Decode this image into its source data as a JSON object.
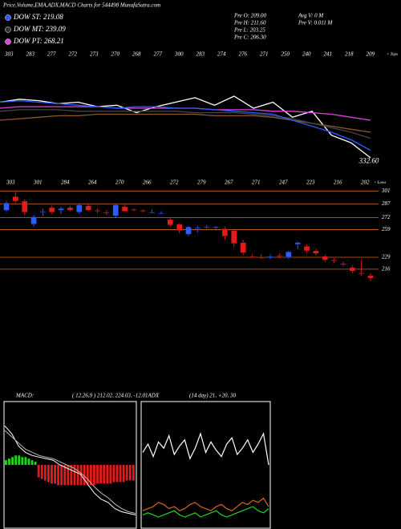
{
  "header": "Price,Volume,EMA,ADX,MACD Charts for 544498  MunafaSutra.com",
  "legend": [
    {
      "name": "DOW ST: 219.08",
      "color": "#2a5cff"
    },
    {
      "name": "DOW MT: 239.09",
      "color": "#333333"
    },
    {
      "name": "DOW PT: 268.21",
      "color": "#e040e0"
    }
  ],
  "info": [
    "Pre  O: 209.00",
    "Pre  H: 211.60",
    "Pre  L: 203.25",
    "Pre  C: 206.30",
    "Avg V: 0  M",
    "Pre  V: 0.011 M"
  ],
  "chart_data": [
    {
      "type": "line",
      "tops_label": "< Tops",
      "tops": [
        "303",
        "283",
        "277",
        "272",
        "273",
        "270",
        "268",
        "277",
        "300",
        "283",
        "274",
        "276",
        "271",
        "250",
        "240",
        "241",
        "218",
        "209"
      ],
      "marker": {
        "value": 332.6,
        "label": "332.60"
      },
      "ylim": [
        320,
        400
      ],
      "series": [
        {
          "color": "#ffffff",
          "values": [
            372,
            374,
            373,
            371,
            372,
            369,
            370,
            365,
            369,
            372,
            375,
            370,
            376,
            368,
            372,
            362,
            366,
            350,
            345,
            335
          ]
        },
        {
          "color": "#8b5a2b",
          "values": [
            360,
            361,
            362,
            363,
            363,
            364,
            364,
            364,
            364,
            364,
            364,
            363,
            363,
            363,
            362,
            360,
            358,
            356,
            354,
            352
          ]
        },
        {
          "color": "#444444",
          "values": [
            366,
            367,
            367,
            367,
            366,
            366,
            366,
            366,
            366,
            366,
            365,
            365,
            365,
            364,
            363,
            361,
            358,
            355,
            352,
            348
          ]
        },
        {
          "color": "#e040e0",
          "values": [
            368,
            369,
            369,
            369,
            369,
            369,
            368,
            368,
            368,
            368,
            368,
            367,
            367,
            367,
            366,
            366,
            365,
            364,
            362,
            360
          ]
        },
        {
          "color": "#2a5cff",
          "values": [
            372,
            373,
            372,
            371,
            370,
            369,
            368,
            369,
            369,
            368,
            368,
            367,
            366,
            365,
            364,
            360,
            356,
            352,
            347,
            340
          ]
        }
      ]
    },
    {
      "type": "candlestick",
      "lows_label": "< Lows",
      "lows": [
        "303",
        "301",
        "284",
        "264",
        "270",
        "266",
        "272",
        "279",
        "267",
        "271",
        "247",
        "223",
        "216",
        "202"
      ],
      "ylim": [
        195,
        310
      ],
      "yticks": [
        301,
        287,
        272,
        259,
        229,
        216
      ],
      "up_color": "#2a5cff",
      "down_color": "#e31b1b",
      "grid_color": "#d2691e",
      "open": [
        280,
        295,
        290,
        265,
        278,
        283,
        280,
        283,
        278,
        285,
        280,
        278,
        274,
        284,
        281,
        280,
        278,
        277,
        270,
        265,
        254,
        260,
        262,
        261,
        260,
        258,
        245,
        230,
        229,
        229,
        231,
        229,
        243,
        241,
        236,
        230,
        226,
        222,
        218,
        212,
        209
      ],
      "high": [
        290,
        300,
        292,
        275,
        282,
        285,
        284,
        285,
        288,
        287,
        282,
        280,
        287,
        286,
        282,
        281,
        281,
        279,
        273,
        266,
        263,
        263,
        264,
        263,
        262,
        260,
        248,
        232,
        232,
        232,
        233,
        236,
        246,
        243,
        238,
        232,
        228,
        224,
        220,
        226,
        211.6
      ],
      "low": [
        278,
        288,
        275,
        262,
        274,
        276,
        276,
        279,
        276,
        279,
        277,
        275,
        272,
        278,
        279,
        278,
        277,
        276,
        262,
        255,
        252,
        256,
        260,
        258,
        248,
        240,
        232,
        228,
        227,
        227,
        228,
        227,
        238,
        234,
        231,
        224,
        223,
        219,
        212,
        209,
        203.25
      ],
      "close": [
        288,
        290,
        278,
        273,
        279,
        278,
        282,
        280,
        286,
        280,
        279,
        277,
        286,
        279,
        280,
        279,
        278,
        277,
        264,
        258,
        262,
        261,
        262,
        262,
        252,
        244,
        234,
        229,
        228,
        230,
        230,
        235,
        245,
        236,
        233,
        226,
        225,
        221,
        214,
        211,
        206.3
      ]
    },
    {
      "type": "macd",
      "label": "MACD:",
      "title": "( 12,26,9 ) 212.02, 224.03, -12.01ADX",
      "ylim": [
        -40,
        40
      ],
      "histogram": [
        3,
        4,
        5,
        6,
        6,
        5,
        5,
        4,
        3,
        2,
        -8,
        -9,
        -10,
        -11,
        -12,
        -12,
        -13,
        -13,
        -13,
        -13,
        -13,
        -13,
        -13,
        -13,
        -13,
        -13,
        -13,
        -13,
        -12,
        -12,
        -12,
        -12,
        -12,
        -11,
        -11,
        -11,
        -11,
        -10,
        -10,
        -10
      ],
      "series": [
        {
          "color": "#ffffff",
          "values": [
            25,
            20,
            12,
            8,
            6,
            5,
            4,
            3,
            0,
            -2,
            -4,
            -6,
            -12,
            -18,
            -22,
            -24,
            -28,
            -30,
            -31,
            -32
          ]
        },
        {
          "color": "#bbbbbb",
          "values": [
            22,
            18,
            14,
            10,
            8,
            6,
            5,
            4,
            2,
            0,
            -2,
            -5,
            -9,
            -14,
            -18,
            -21,
            -25,
            -28,
            -30,
            -31
          ]
        }
      ],
      "histogram_up": "#1fd61f",
      "histogram_down": "#e31b1b"
    },
    {
      "type": "adx",
      "title": "(14 day) 21, +20, 30",
      "ylim": [
        0,
        60
      ],
      "series": [
        {
          "color": "#ffffff",
          "values": [
            36,
            40,
            34,
            41,
            38,
            44,
            35,
            39,
            42,
            33,
            38,
            45,
            36,
            41,
            37,
            34,
            40,
            43,
            35,
            38,
            42,
            36,
            40,
            45,
            30
          ]
        },
        {
          "color": "#d2691e",
          "values": [
            8,
            9,
            10,
            12,
            11,
            9,
            10,
            8,
            9,
            11,
            12,
            10,
            9,
            8,
            10,
            11,
            9,
            8,
            10,
            12,
            11,
            13,
            12,
            14,
            10
          ]
        },
        {
          "color": "#1fd61f",
          "values": [
            6,
            7,
            6,
            5,
            6,
            7,
            8,
            6,
            5,
            6,
            7,
            5,
            6,
            7,
            8,
            6,
            5,
            6,
            7,
            8,
            9,
            10,
            8,
            7,
            9
          ]
        }
      ]
    }
  ]
}
